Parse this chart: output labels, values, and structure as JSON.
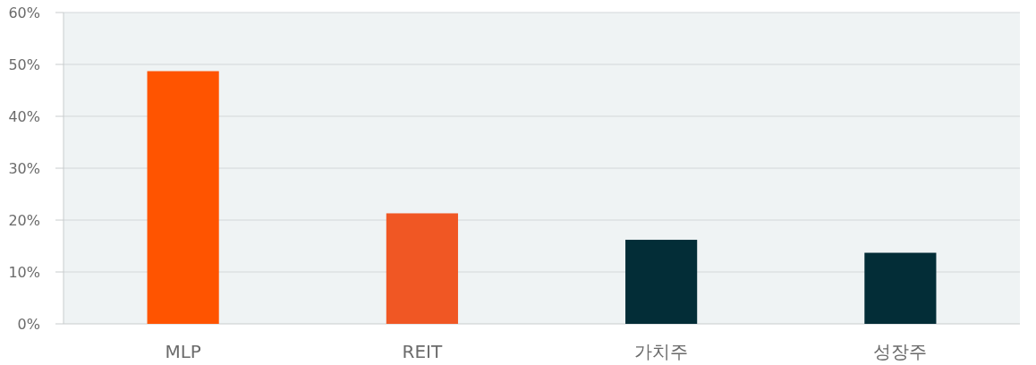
{
  "chart_data": {
    "type": "bar",
    "categories": [
      "MLP",
      "REIT",
      "가치주",
      "성장주"
    ],
    "values": [
      48.7,
      21.3,
      16.2,
      13.7
    ],
    "colors": [
      "#ff5400",
      "#f05724",
      "#032d37",
      "#032d37"
    ],
    "ylim": [
      0,
      60
    ],
    "yticks": [
      {
        "value": 0,
        "label": "0%"
      },
      {
        "value": 10,
        "label": "10%"
      },
      {
        "value": 20,
        "label": "20%"
      },
      {
        "value": 30,
        "label": "30%"
      },
      {
        "value": 40,
        "label": "40%"
      },
      {
        "value": 50,
        "label": "50%"
      },
      {
        "value": 60,
        "label": "60%"
      }
    ],
    "grid": "y"
  }
}
